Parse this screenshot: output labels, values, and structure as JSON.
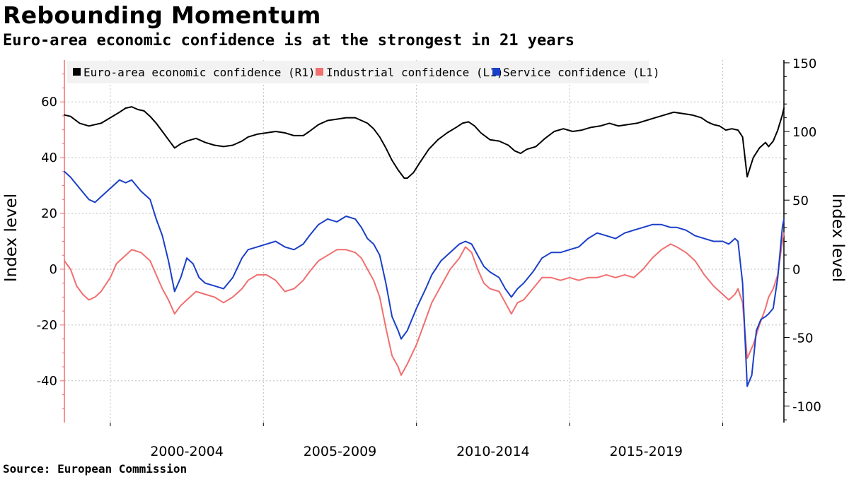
{
  "header": {
    "title": "Rebounding Momentum",
    "subtitle": "Euro-area economic confidence is at the strongest in 21 years"
  },
  "footer": {
    "source": "Source: European Commission"
  },
  "chart_data": {
    "type": "line",
    "title": "Rebounding Momentum",
    "subtitle": "Euro-area economic confidence is at the strongest in 21 years",
    "x_range": [
      1998.0,
      2021.5
    ],
    "x_tick_labels": [
      {
        "label": "2000-2004",
        "start": 1999.5,
        "end": 2004.5
      },
      {
        "label": "2005-2009",
        "start": 2004.5,
        "end": 2009.5
      },
      {
        "label": "2010-2014",
        "start": 2009.5,
        "end": 2014.5
      },
      {
        "label": "2015-2019",
        "start": 2014.5,
        "end": 2019.5
      }
    ],
    "x_gridlines": [
      1999.5,
      2004.5,
      2009.5,
      2014.5,
      2019.5
    ],
    "y_left": {
      "label": "Index level",
      "range": [
        -55,
        75
      ],
      "ticks": [
        60,
        40,
        20,
        0,
        -20,
        -40
      ],
      "tick_labels": [
        "60",
        "40",
        "20",
        "0",
        "-20",
        "-40"
      ]
    },
    "y_right": {
      "label": "Index level",
      "range": [
        -112,
        152
      ],
      "ticks": [
        150,
        100,
        50,
        0,
        -50,
        -100
      ],
      "tick_labels": [
        "150",
        "100",
        "50",
        "0",
        "-50",
        "-100"
      ]
    },
    "series": [
      {
        "name": "Euro-area economic confidence (R1)",
        "axis": "right",
        "color": "#000000",
        "points": [
          [
            1998.0,
            112
          ],
          [
            1998.2,
            111
          ],
          [
            1998.5,
            106
          ],
          [
            1998.8,
            104
          ],
          [
            1999.0,
            105
          ],
          [
            1999.2,
            106
          ],
          [
            1999.5,
            110
          ],
          [
            1999.8,
            114
          ],
          [
            2000.0,
            117
          ],
          [
            2000.2,
            118
          ],
          [
            2000.4,
            116
          ],
          [
            2000.6,
            115
          ],
          [
            2000.8,
            111
          ],
          [
            2001.0,
            106
          ],
          [
            2001.2,
            100
          ],
          [
            2001.4,
            94
          ],
          [
            2001.6,
            88
          ],
          [
            2001.8,
            91
          ],
          [
            2002.0,
            93
          ],
          [
            2002.3,
            95
          ],
          [
            2002.6,
            92
          ],
          [
            2002.9,
            90
          ],
          [
            2003.2,
            89
          ],
          [
            2003.5,
            90
          ],
          [
            2003.8,
            93
          ],
          [
            2004.0,
            96
          ],
          [
            2004.3,
            98
          ],
          [
            2004.6,
            99
          ],
          [
            2004.9,
            100
          ],
          [
            2005.2,
            99
          ],
          [
            2005.5,
            97
          ],
          [
            2005.8,
            97
          ],
          [
            2006.0,
            100
          ],
          [
            2006.3,
            105
          ],
          [
            2006.6,
            108
          ],
          [
            2006.9,
            109
          ],
          [
            2007.2,
            110
          ],
          [
            2007.5,
            110
          ],
          [
            2007.7,
            108
          ],
          [
            2007.9,
            106
          ],
          [
            2008.1,
            102
          ],
          [
            2008.3,
            96
          ],
          [
            2008.5,
            88
          ],
          [
            2008.7,
            79
          ],
          [
            2008.9,
            72
          ],
          [
            2009.1,
            66
          ],
          [
            2009.2,
            66
          ],
          [
            2009.4,
            70
          ],
          [
            2009.6,
            77
          ],
          [
            2009.9,
            87
          ],
          [
            2010.2,
            94
          ],
          [
            2010.5,
            99
          ],
          [
            2010.8,
            103
          ],
          [
            2011.0,
            106
          ],
          [
            2011.2,
            107
          ],
          [
            2011.4,
            104
          ],
          [
            2011.6,
            99
          ],
          [
            2011.9,
            94
          ],
          [
            2012.2,
            93
          ],
          [
            2012.5,
            90
          ],
          [
            2012.7,
            86
          ],
          [
            2012.9,
            84
          ],
          [
            2013.1,
            87
          ],
          [
            2013.4,
            89
          ],
          [
            2013.7,
            95
          ],
          [
            2014.0,
            100
          ],
          [
            2014.3,
            102
          ],
          [
            2014.6,
            100
          ],
          [
            2014.9,
            101
          ],
          [
            2015.2,
            103
          ],
          [
            2015.5,
            104
          ],
          [
            2015.8,
            106
          ],
          [
            2016.1,
            104
          ],
          [
            2016.4,
            105
          ],
          [
            2016.7,
            106
          ],
          [
            2017.0,
            108
          ],
          [
            2017.3,
            110
          ],
          [
            2017.6,
            112
          ],
          [
            2017.9,
            114
          ],
          [
            2018.2,
            113
          ],
          [
            2018.5,
            112
          ],
          [
            2018.8,
            110
          ],
          [
            2019.0,
            107
          ],
          [
            2019.2,
            105
          ],
          [
            2019.4,
            104
          ],
          [
            2019.6,
            101
          ],
          [
            2019.8,
            102
          ],
          [
            2020.0,
            101
          ],
          [
            2020.15,
            96
          ],
          [
            2020.3,
            67
          ],
          [
            2020.5,
            81
          ],
          [
            2020.7,
            88
          ],
          [
            2020.9,
            92
          ],
          [
            2021.0,
            89
          ],
          [
            2021.15,
            93
          ],
          [
            2021.3,
            101
          ],
          [
            2021.45,
            112
          ],
          [
            2021.5,
            117
          ]
        ]
      },
      {
        "name": "Industrial confidence (L1)",
        "axis": "left",
        "color": "#f16f6f",
        "points": [
          [
            1998.0,
            3
          ],
          [
            1998.2,
            0
          ],
          [
            1998.4,
            -6
          ],
          [
            1998.6,
            -9
          ],
          [
            1998.8,
            -11
          ],
          [
            1999.0,
            -10
          ],
          [
            1999.2,
            -8
          ],
          [
            1999.5,
            -3
          ],
          [
            1999.7,
            2
          ],
          [
            2000.0,
            5
          ],
          [
            2000.2,
            7
          ],
          [
            2000.5,
            6
          ],
          [
            2000.8,
            3
          ],
          [
            2001.0,
            -2
          ],
          [
            2001.2,
            -7
          ],
          [
            2001.4,
            -11
          ],
          [
            2001.6,
            -16
          ],
          [
            2001.8,
            -13
          ],
          [
            2002.0,
            -11
          ],
          [
            2002.3,
            -8
          ],
          [
            2002.6,
            -9
          ],
          [
            2002.9,
            -10
          ],
          [
            2003.2,
            -12
          ],
          [
            2003.5,
            -10
          ],
          [
            2003.8,
            -7
          ],
          [
            2004.0,
            -4
          ],
          [
            2004.3,
            -2
          ],
          [
            2004.6,
            -2
          ],
          [
            2004.9,
            -4
          ],
          [
            2005.2,
            -8
          ],
          [
            2005.5,
            -7
          ],
          [
            2005.8,
            -4
          ],
          [
            2006.0,
            -1
          ],
          [
            2006.3,
            3
          ],
          [
            2006.6,
            5
          ],
          [
            2006.9,
            7
          ],
          [
            2007.2,
            7
          ],
          [
            2007.5,
            6
          ],
          [
            2007.7,
            4
          ],
          [
            2007.9,
            0
          ],
          [
            2008.1,
            -4
          ],
          [
            2008.3,
            -10
          ],
          [
            2008.5,
            -21
          ],
          [
            2008.7,
            -31
          ],
          [
            2008.9,
            -35
          ],
          [
            2009.0,
            -38
          ],
          [
            2009.2,
            -34
          ],
          [
            2009.5,
            -27
          ],
          [
            2009.8,
            -18
          ],
          [
            2010.0,
            -12
          ],
          [
            2010.3,
            -6
          ],
          [
            2010.6,
            0
          ],
          [
            2010.9,
            4
          ],
          [
            2011.1,
            8
          ],
          [
            2011.3,
            6
          ],
          [
            2011.5,
            0
          ],
          [
            2011.7,
            -5
          ],
          [
            2011.9,
            -7
          ],
          [
            2012.2,
            -8
          ],
          [
            2012.4,
            -12
          ],
          [
            2012.6,
            -16
          ],
          [
            2012.8,
            -12
          ],
          [
            2013.0,
            -11
          ],
          [
            2013.3,
            -7
          ],
          [
            2013.6,
            -3
          ],
          [
            2013.9,
            -3
          ],
          [
            2014.2,
            -4
          ],
          [
            2014.5,
            -3
          ],
          [
            2014.8,
            -4
          ],
          [
            2015.1,
            -3
          ],
          [
            2015.4,
            -3
          ],
          [
            2015.7,
            -2
          ],
          [
            2016.0,
            -3
          ],
          [
            2016.3,
            -2
          ],
          [
            2016.6,
            -3
          ],
          [
            2016.9,
            0
          ],
          [
            2017.2,
            4
          ],
          [
            2017.5,
            7
          ],
          [
            2017.8,
            9
          ],
          [
            2018.0,
            8
          ],
          [
            2018.3,
            6
          ],
          [
            2018.6,
            3
          ],
          [
            2018.9,
            -2
          ],
          [
            2019.2,
            -6
          ],
          [
            2019.5,
            -9
          ],
          [
            2019.7,
            -11
          ],
          [
            2019.9,
            -9
          ],
          [
            2020.0,
            -7
          ],
          [
            2020.15,
            -12
          ],
          [
            2020.3,
            -32
          ],
          [
            2020.5,
            -27
          ],
          [
            2020.7,
            -20
          ],
          [
            2020.9,
            -14
          ],
          [
            2021.0,
            -10
          ],
          [
            2021.15,
            -7
          ],
          [
            2021.3,
            -2
          ],
          [
            2021.45,
            10
          ],
          [
            2021.5,
            13
          ]
        ]
      },
      {
        "name": "Service confidence (L1)",
        "axis": "left",
        "color": "#1a3fc8",
        "points": [
          [
            1998.0,
            35
          ],
          [
            1998.2,
            33
          ],
          [
            1998.5,
            29
          ],
          [
            1998.8,
            25
          ],
          [
            1999.0,
            24
          ],
          [
            1999.2,
            26
          ],
          [
            1999.5,
            29
          ],
          [
            1999.8,
            32
          ],
          [
            2000.0,
            31
          ],
          [
            2000.2,
            32
          ],
          [
            2000.5,
            28
          ],
          [
            2000.8,
            25
          ],
          [
            2001.0,
            18
          ],
          [
            2001.2,
            12
          ],
          [
            2001.4,
            3
          ],
          [
            2001.6,
            -8
          ],
          [
            2001.8,
            -3
          ],
          [
            2002.0,
            4
          ],
          [
            2002.2,
            2
          ],
          [
            2002.4,
            -3
          ],
          [
            2002.6,
            -5
          ],
          [
            2002.9,
            -6
          ],
          [
            2003.2,
            -7
          ],
          [
            2003.5,
            -3
          ],
          [
            2003.8,
            4
          ],
          [
            2004.0,
            7
          ],
          [
            2004.3,
            8
          ],
          [
            2004.6,
            9
          ],
          [
            2004.9,
            10
          ],
          [
            2005.2,
            8
          ],
          [
            2005.5,
            7
          ],
          [
            2005.8,
            9
          ],
          [
            2006.0,
            12
          ],
          [
            2006.3,
            16
          ],
          [
            2006.6,
            18
          ],
          [
            2006.9,
            17
          ],
          [
            2007.2,
            19
          ],
          [
            2007.5,
            18
          ],
          [
            2007.7,
            15
          ],
          [
            2007.9,
            11
          ],
          [
            2008.1,
            9
          ],
          [
            2008.3,
            5
          ],
          [
            2008.5,
            -5
          ],
          [
            2008.7,
            -17
          ],
          [
            2008.9,
            -22
          ],
          [
            2009.0,
            -25
          ],
          [
            2009.2,
            -22
          ],
          [
            2009.5,
            -14
          ],
          [
            2009.8,
            -7
          ],
          [
            2010.0,
            -2
          ],
          [
            2010.3,
            3
          ],
          [
            2010.6,
            6
          ],
          [
            2010.9,
            9
          ],
          [
            2011.1,
            10
          ],
          [
            2011.3,
            9
          ],
          [
            2011.5,
            5
          ],
          [
            2011.7,
            1
          ],
          [
            2011.9,
            -1
          ],
          [
            2012.2,
            -3
          ],
          [
            2012.4,
            -7
          ],
          [
            2012.6,
            -10
          ],
          [
            2012.8,
            -7
          ],
          [
            2013.0,
            -5
          ],
          [
            2013.3,
            -1
          ],
          [
            2013.6,
            4
          ],
          [
            2013.9,
            6
          ],
          [
            2014.2,
            6
          ],
          [
            2014.5,
            7
          ],
          [
            2014.8,
            8
          ],
          [
            2015.1,
            11
          ],
          [
            2015.4,
            13
          ],
          [
            2015.7,
            12
          ],
          [
            2016.0,
            11
          ],
          [
            2016.3,
            13
          ],
          [
            2016.6,
            14
          ],
          [
            2016.9,
            15
          ],
          [
            2017.2,
            16
          ],
          [
            2017.5,
            16
          ],
          [
            2017.8,
            15
          ],
          [
            2018.0,
            15
          ],
          [
            2018.3,
            14
          ],
          [
            2018.6,
            12
          ],
          [
            2018.9,
            11
          ],
          [
            2019.2,
            10
          ],
          [
            2019.5,
            10
          ],
          [
            2019.7,
            9
          ],
          [
            2019.9,
            11
          ],
          [
            2020.0,
            10
          ],
          [
            2020.15,
            -5
          ],
          [
            2020.3,
            -42
          ],
          [
            2020.45,
            -38
          ],
          [
            2020.6,
            -22
          ],
          [
            2020.75,
            -18
          ],
          [
            2020.9,
            -17
          ],
          [
            2021.0,
            -16
          ],
          [
            2021.15,
            -14
          ],
          [
            2021.3,
            -3
          ],
          [
            2021.45,
            15
          ],
          [
            2021.5,
            18
          ]
        ]
      }
    ],
    "legend": {
      "placement": "top-left",
      "entries": [
        "Euro-area economic confidence (R1)",
        "Industrial confidence (L1)",
        "Service confidence (L1)"
      ]
    }
  }
}
